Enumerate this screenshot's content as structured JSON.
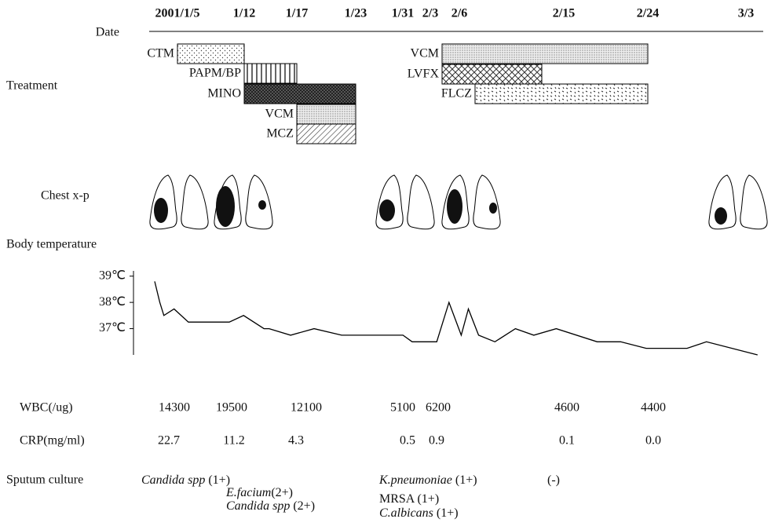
{
  "date_axis": {
    "label": "Date",
    "ticks": [
      "2001/1/5",
      "1/12",
      "1/17",
      "1/23",
      "1/31",
      "2/3",
      "2/6",
      "2/15",
      "2/24",
      "3/3"
    ]
  },
  "treatment": {
    "label": "Treatment",
    "drugs": [
      "CTM",
      "PAPM/BP",
      "MINO",
      "VCM",
      "MCZ",
      "VCM",
      "LVFX",
      "FLCZ"
    ]
  },
  "chest_xp": {
    "label": "Chest x-p"
  },
  "chart_data": {
    "type": "line",
    "title": "Body temperature",
    "x": [
      -2.2,
      -1.7,
      -1.3,
      -0.3,
      1.1,
      5.1,
      6.5,
      8.5,
      9.0,
      11.1,
      13.4,
      16.1,
      22.1,
      23.0,
      25.4,
      26.6,
      27.8,
      28.5,
      29.5,
      31.1,
      33.1,
      34.9,
      37.1,
      41.1,
      43.4,
      45.9,
      49.9,
      51.8,
      56.8
    ],
    "values": [
      38.8,
      38.0,
      37.5,
      37.75,
      37.25,
      37.25,
      37.5,
      37.0,
      37.0,
      36.75,
      37.0,
      36.75,
      36.75,
      36.5,
      36.5,
      38.0,
      36.75,
      37.75,
      36.75,
      36.5,
      37.0,
      36.75,
      37.0,
      36.5,
      36.5,
      36.25,
      36.25,
      36.5,
      36.0
    ],
    "xlim": [
      -2.2,
      57.2
    ],
    "ylim": [
      36.0,
      39.2
    ],
    "yticks": [
      {
        "value": 39,
        "label": "39℃"
      },
      {
        "value": 38,
        "label": "38℃"
      },
      {
        "value": 37,
        "label": "37℃"
      }
    ],
    "color": "#000000"
  },
  "labs": {
    "wbc": {
      "label": "WBC(/ug)",
      "values": [
        "14300",
        "19500",
        "12100",
        "5100",
        "6200",
        "4600",
        "4400"
      ]
    },
    "crp": {
      "label": "CRP(mg/ml)",
      "values": [
        "22.7",
        "11.2",
        "4.3",
        "0.5",
        "0.9",
        "0.1",
        "0.0"
      ]
    }
  },
  "sputum_culture": {
    "label": "Sputum culture",
    "results": [
      {
        "organism": "Candida spp",
        "grade": " (1+)",
        "italic": true
      },
      {
        "organism": "E.facium",
        "grade": "(2+)",
        "italic": true
      },
      {
        "organism": "Candida spp",
        "grade": " (2+)",
        "italic": true
      },
      {
        "organism": "K.pneumoniae",
        "grade": " (1+)",
        "italic": true
      },
      {
        "organism": "MRSA",
        "grade": " (1+)",
        "italic": false
      },
      {
        "organism": "C.albicans",
        "grade": " (1+)",
        "italic": true
      },
      {
        "grade": "(-)"
      }
    ]
  }
}
